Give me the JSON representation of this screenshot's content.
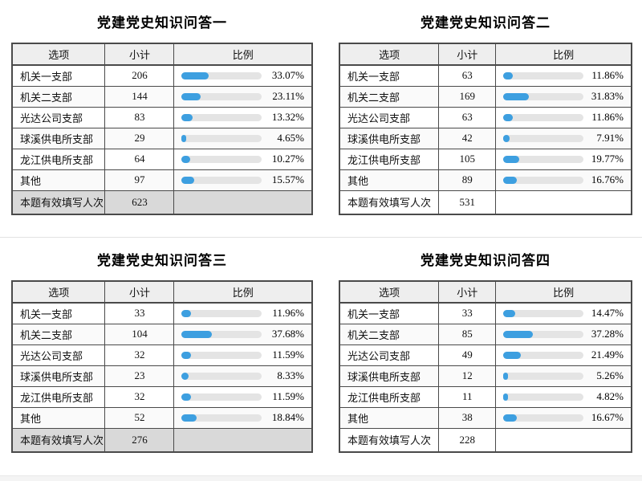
{
  "colors": {
    "bar_fill": "#3D9FE0",
    "bar_track": "#E4E4E4",
    "table_border": "#4A4A4A",
    "header_bg": "#EEEEEE",
    "total_row_bg": "#D9D9D9"
  },
  "chart_data": [
    {
      "type": "table",
      "title": "党建党史知识问答一",
      "columns": [
        "选项",
        "小计",
        "比例"
      ],
      "rows": [
        {
          "option": "机关一支部",
          "count": 206,
          "percent": 33.07,
          "percent_label": "33.07%"
        },
        {
          "option": "机关二支部",
          "count": 144,
          "percent": 23.11,
          "percent_label": "23.11%"
        },
        {
          "option": "光达公司支部",
          "count": 83,
          "percent": 13.32,
          "percent_label": "13.32%"
        },
        {
          "option": "球溪供电所支部",
          "count": 29,
          "percent": 4.65,
          "percent_label": "4.65%"
        },
        {
          "option": "龙江供电所支部",
          "count": 64,
          "percent": 10.27,
          "percent_label": "10.27%"
        },
        {
          "option": "其他",
          "count": 97,
          "percent": 15.57,
          "percent_label": "15.57%"
        }
      ],
      "total_label": "本题有效填写人次",
      "total": 623,
      "total_row_shaded": true
    },
    {
      "type": "table",
      "title": "党建党史知识问答二",
      "columns": [
        "选项",
        "小计",
        "比例"
      ],
      "rows": [
        {
          "option": "机关一支部",
          "count": 63,
          "percent": 11.86,
          "percent_label": "11.86%"
        },
        {
          "option": "机关二支部",
          "count": 169,
          "percent": 31.83,
          "percent_label": "31.83%"
        },
        {
          "option": "光达公司支部",
          "count": 63,
          "percent": 11.86,
          "percent_label": "11.86%"
        },
        {
          "option": "球溪供电所支部",
          "count": 42,
          "percent": 7.91,
          "percent_label": "7.91%"
        },
        {
          "option": "龙江供电所支部",
          "count": 105,
          "percent": 19.77,
          "percent_label": "19.77%"
        },
        {
          "option": "其他",
          "count": 89,
          "percent": 16.76,
          "percent_label": "16.76%"
        }
      ],
      "total_label": "本题有效填写人次",
      "total": 531,
      "total_row_shaded": false
    },
    {
      "type": "table",
      "title": "党建党史知识问答三",
      "columns": [
        "选项",
        "小计",
        "比例"
      ],
      "rows": [
        {
          "option": "机关一支部",
          "count": 33,
          "percent": 11.96,
          "percent_label": "11.96%"
        },
        {
          "option": "机关二支部",
          "count": 104,
          "percent": 37.68,
          "percent_label": "37.68%"
        },
        {
          "option": "光达公司支部",
          "count": 32,
          "percent": 11.59,
          "percent_label": "11.59%"
        },
        {
          "option": "球溪供电所支部",
          "count": 23,
          "percent": 8.33,
          "percent_label": "8.33%"
        },
        {
          "option": "龙江供电所支部",
          "count": 32,
          "percent": 11.59,
          "percent_label": "11.59%"
        },
        {
          "option": "其他",
          "count": 52,
          "percent": 18.84,
          "percent_label": "18.84%"
        }
      ],
      "total_label": "本题有效填写人次",
      "total": 276,
      "total_row_shaded": true
    },
    {
      "type": "table",
      "title": "党建党史知识问答四",
      "columns": [
        "选项",
        "小计",
        "比例"
      ],
      "rows": [
        {
          "option": "机关一支部",
          "count": 33,
          "percent": 14.47,
          "percent_label": "14.47%"
        },
        {
          "option": "机关二支部",
          "count": 85,
          "percent": 37.28,
          "percent_label": "37.28%"
        },
        {
          "option": "光达公司支部",
          "count": 49,
          "percent": 21.49,
          "percent_label": "21.49%"
        },
        {
          "option": "球溪供电所支部",
          "count": 12,
          "percent": 5.26,
          "percent_label": "5.26%"
        },
        {
          "option": "龙江供电所支部",
          "count": 11,
          "percent": 4.82,
          "percent_label": "4.82%"
        },
        {
          "option": "其他",
          "count": 38,
          "percent": 16.67,
          "percent_label": "16.67%"
        }
      ],
      "total_label": "本题有效填写人次",
      "total": 228,
      "total_row_shaded": false
    }
  ]
}
